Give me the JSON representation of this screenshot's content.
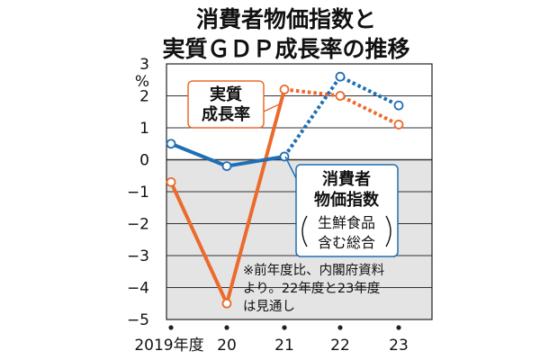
{
  "chart_data": {
    "type": "line",
    "title": [
      "消費者物価指数と",
      "実質ＧＤＰ成長率の推移"
    ],
    "y_unit": "%",
    "ylim": [
      -5,
      3
    ],
    "yticks": [
      3,
      2,
      1,
      0,
      -1,
      -2,
      -3,
      -4,
      -5
    ],
    "categories": [
      "2019年度",
      "20",
      "21",
      "22",
      "23"
    ],
    "series": [
      {
        "name": [
          "実質",
          "成長率"
        ],
        "color": "#ec6a2c",
        "values": [
          -0.7,
          -4.5,
          2.2,
          2.0,
          1.1
        ],
        "projected_from_index": 2
      },
      {
        "name": [
          "消費者",
          "物価指数"
        ],
        "sub_label": [
          "生鮮食品",
          "含む総合"
        ],
        "color": "#1f6fb4",
        "values": [
          0.5,
          -0.2,
          0.1,
          2.6,
          1.7
        ],
        "projected_from_index": 2
      }
    ],
    "note": [
      "※前年度比、内閣府資料",
      "より。22年度と23年度",
      "は見通し"
    ],
    "negative_region_shaded": true,
    "grid": "horizontal"
  }
}
